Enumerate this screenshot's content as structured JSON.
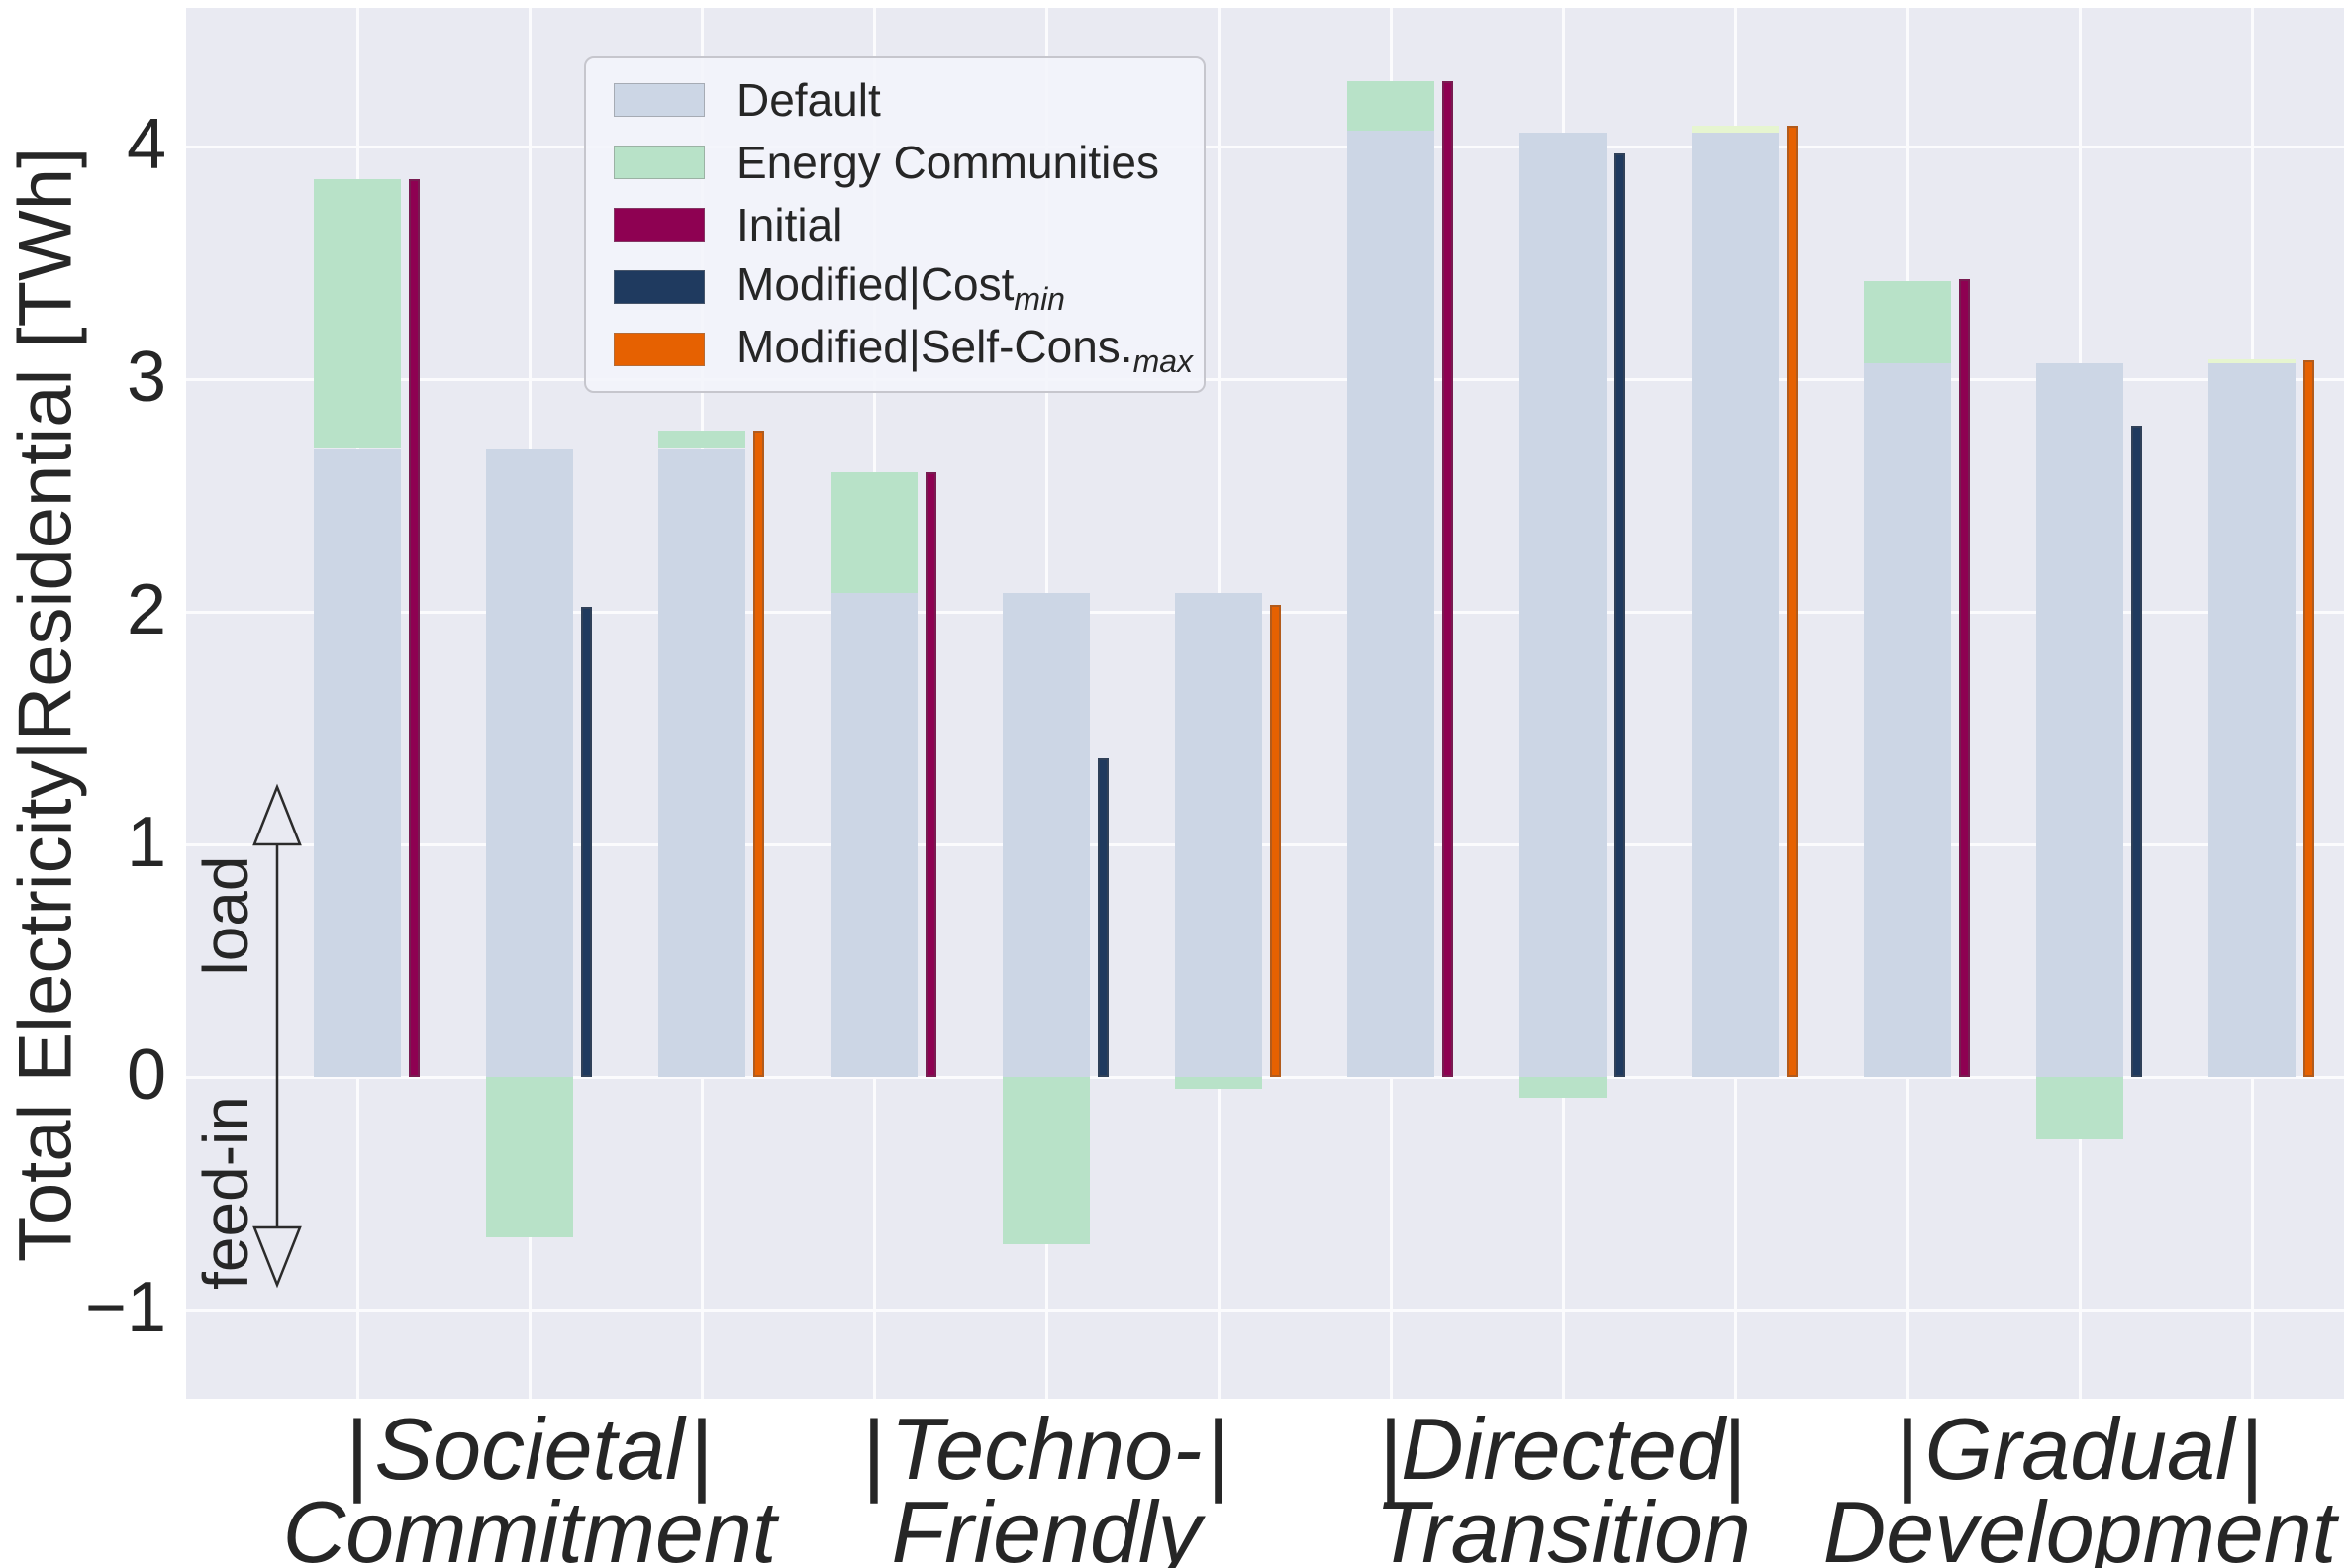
{
  "figure": {
    "background": "#ffffff",
    "plot_background": "#e9eaf2",
    "grid_color": "#fbfbfd",
    "text_color": "#262626"
  },
  "chart_data": {
    "type": "bar",
    "title": "",
    "xlabel": "",
    "ylabel": "Total Electricity|Residential [TWh]",
    "ylim": [
      -1.39,
      4.6
    ],
    "grid": true,
    "legend_position": "upper-left-inset",
    "yticks": [
      {
        "value": 4,
        "label": "4"
      },
      {
        "value": 3,
        "label": "3"
      },
      {
        "value": 2,
        "label": "2"
      },
      {
        "value": 1,
        "label": "1"
      },
      {
        "value": 0,
        "label": "0"
      },
      {
        "value": -1,
        "label": "−1"
      }
    ],
    "tick_separator": "|",
    "annotations": {
      "load_label": "load",
      "feedin_label": "feed-in",
      "arrow_top_value": 1.23,
      "arrow_bottom_value": -0.9
    },
    "legend": [
      {
        "label": "Default",
        "sub": "",
        "color": "#ccd6e5"
      },
      {
        "label": "Energy Communities",
        "sub": "",
        "color": "#b8e2c8"
      },
      {
        "label": "Initial",
        "sub": "",
        "color": "#8e0152"
      },
      {
        "label": "Modified|Cost",
        "sub": "min",
        "color": "#1f3a5f"
      },
      {
        "label": "Modified|Self-Cons.",
        "sub": "max",
        "color": "#e66101"
      }
    ],
    "series_colors": {
      "default": "#ccd6e5",
      "energy_communities": "#b8e2c8",
      "energy_communities_pale": "#e6f5d0",
      "initial": "#8e0152",
      "cost_min": "#1f3a5f",
      "self_cons": "#e66101"
    },
    "groups": [
      {
        "name_lines": [
          "Societal",
          "Commitment"
        ],
        "bars": [
          {
            "default": 2.7,
            "ec": 3.86,
            "ec_style": "green",
            "marker": "initial",
            "marker_value": 3.86
          },
          {
            "default": 2.7,
            "ec": -0.69,
            "ec_style": "green",
            "marker": "cost_min",
            "marker_value": 2.02
          },
          {
            "default": 2.7,
            "ec": 2.78,
            "ec_style": "green",
            "marker": "self_cons",
            "marker_value": 2.78
          }
        ]
      },
      {
        "name_lines": [
          "Techno-",
          "Friendly"
        ],
        "bars": [
          {
            "default": 2.08,
            "ec": 2.6,
            "ec_style": "green",
            "marker": "initial",
            "marker_value": 2.6
          },
          {
            "default": 2.08,
            "ec": -0.72,
            "ec_style": "green",
            "marker": "cost_min",
            "marker_value": 1.37
          },
          {
            "default": 2.08,
            "ec": -0.05,
            "ec_style": "green",
            "marker": "self_cons",
            "marker_value": 2.03
          }
        ]
      },
      {
        "name_lines": [
          "Directed",
          "Transition"
        ],
        "bars": [
          {
            "default": 4.07,
            "ec": 4.28,
            "ec_style": "green",
            "marker": "initial",
            "marker_value": 4.28
          },
          {
            "default": 4.06,
            "ec": -0.09,
            "ec_style": "green",
            "marker": "cost_min",
            "marker_value": 3.97
          },
          {
            "default": 4.06,
            "ec": 4.09,
            "ec_style": "pale",
            "marker": "self_cons",
            "marker_value": 4.09
          }
        ]
      },
      {
        "name_lines": [
          "Gradual",
          "Development"
        ],
        "bars": [
          {
            "default": 3.07,
            "ec": 3.42,
            "ec_style": "green",
            "marker": "initial",
            "marker_value": 3.43
          },
          {
            "default": 3.07,
            "ec": -0.27,
            "ec_style": "green",
            "marker": "cost_min",
            "marker_value": 2.8
          },
          {
            "default": 3.07,
            "ec": 3.08,
            "ec_style": "pale",
            "marker": "self_cons",
            "marker_value": 3.08
          }
        ]
      }
    ]
  }
}
